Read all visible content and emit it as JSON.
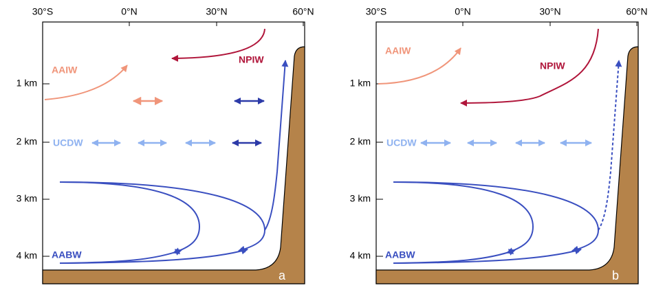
{
  "panels": [
    {
      "label": "a",
      "x_axis": [
        "30°S",
        "0°N",
        "30°N",
        "60°N"
      ],
      "y_axis": [
        "1 km",
        "2 km",
        "3 km",
        "4 km"
      ],
      "water_masses": {
        "aaiw": "AAIW",
        "npiw": "NPIW",
        "ucdw": "UCDW",
        "aabw": "AABW"
      }
    },
    {
      "label": "b",
      "x_axis": [
        "30°S",
        "0°N",
        "30°N",
        "60°N"
      ],
      "y_axis": [
        "1 km",
        "2 km",
        "3 km",
        "4 km"
      ],
      "water_masses": {
        "aaiw": "AAIW",
        "npiw": "NPIW",
        "ucdw": "UCDW",
        "aabw": "AABW"
      }
    }
  ]
}
